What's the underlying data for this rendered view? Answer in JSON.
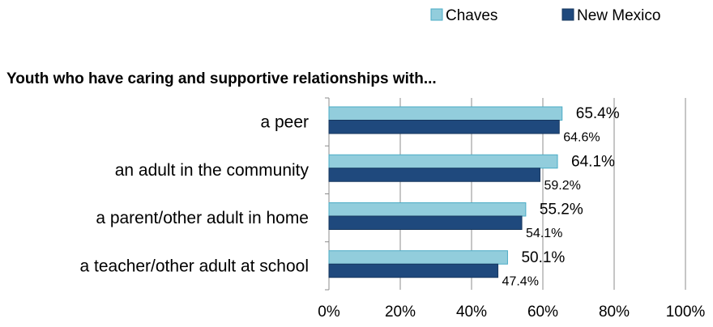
{
  "chart_data": {
    "type": "bar",
    "orientation": "horizontal",
    "title": "Youth who have caring and supportive relationships with...",
    "categories": [
      "a peer",
      "an adult in the community",
      "a parent/other adult in home",
      "a teacher/other adult at school"
    ],
    "series": [
      {
        "name": "Chaves",
        "values": [
          65.4,
          64.1,
          55.2,
          50.1
        ],
        "labels": [
          "65.4%",
          "64.1%",
          "55.2%",
          "50.1%"
        ],
        "color": "#92CDDC"
      },
      {
        "name": "New Mexico",
        "values": [
          64.6,
          59.2,
          54.1,
          47.4
        ],
        "labels": [
          "64.6%",
          "59.2%",
          "54.1%",
          "47.4%"
        ],
        "color": "#1F497D"
      }
    ],
    "xlim": [
      0,
      100
    ],
    "xticks": [
      0,
      20,
      40,
      60,
      80,
      100
    ],
    "xtick_labels": [
      "0%",
      "20%",
      "40%",
      "60%",
      "80%",
      "100%"
    ],
    "grid": "vertical",
    "legend": "top-right"
  }
}
